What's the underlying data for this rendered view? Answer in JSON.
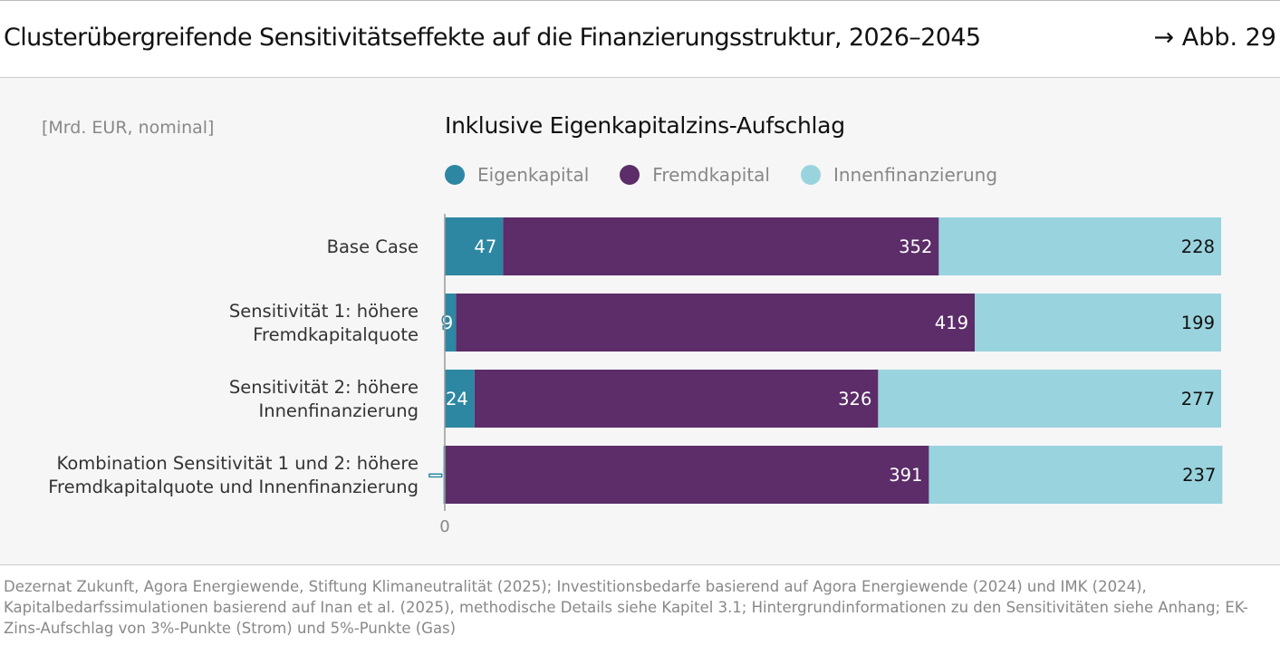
{
  "header": {
    "title": "Clusterübergreifende Sensitivitätseffekte auf die Finanzierungsstruktur, 2026–2045",
    "figure_ref": "→ Abb. 29"
  },
  "colors": {
    "Eigenkapital": "#2d87a2",
    "Fremdkapital": "#5c2d69",
    "Innenfinanzierung": "#99d3de"
  },
  "chart_data": {
    "type": "bar",
    "orientation": "horizontal",
    "stacked": true,
    "title": "Inklusive Eigenkapitalzins-Aufschlag",
    "unit": "[Mrd. EUR, nominal]",
    "legend_position": "top",
    "categories": [
      [
        "Base Case"
      ],
      [
        "Sensitivität 1: höhere",
        "Fremdkapitalquote"
      ],
      [
        "Sensitivität 2: höhere",
        "Innenfinanzierung"
      ],
      [
        "Kombination Sensitivität 1 und 2: höhere",
        "Fremdkapitalquote und Innenfinanzierung"
      ]
    ],
    "series": [
      {
        "name": "Eigenkapital",
        "values": [
          47,
          9,
          24,
          -1
        ]
      },
      {
        "name": "Fremdkapital",
        "values": [
          352,
          419,
          326,
          391
        ]
      },
      {
        "name": "Innenfinanzierung",
        "values": [
          228,
          199,
          277,
          237
        ]
      }
    ],
    "x_tick_labels": [
      "0"
    ],
    "grid": false
  },
  "footer": {
    "source": "Dezernat Zukunft, Agora Energiewende, Stiftung Klimaneutralität (2025); Investitionsbedarfe basierend auf Agora Energiewende (2024) und IMK (2024), Kapitalbedarfssimulationen basierend auf Inan et al. (2025), methodische Details siehe Kapitel 3.1; Hintergrundinformationen zu den Sensitivitäten siehe Anhang; EK-Zins-Aufschlag von 3%-Punkte (Strom) und 5%-Punkte (Gas)"
  }
}
